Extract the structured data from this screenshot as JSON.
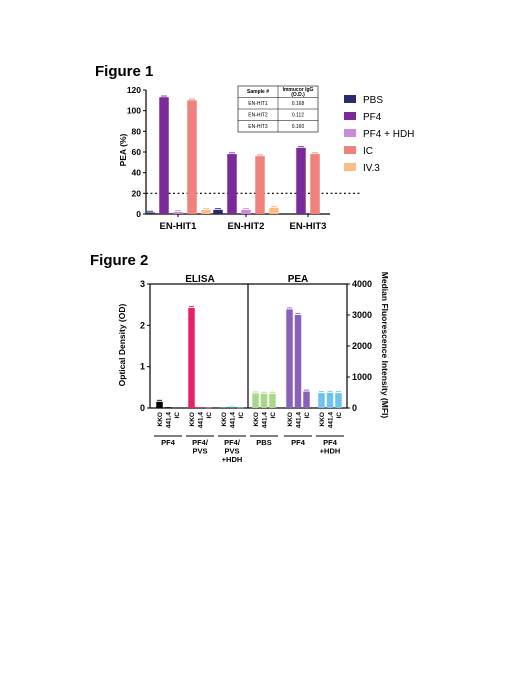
{
  "chart_data": [
    {
      "type": "bar",
      "title": "Figure 1",
      "ylabel": "PEA (%)",
      "ylim": [
        0,
        120
      ],
      "yticks": [
        "0",
        "20",
        "40",
        "60",
        "80",
        "100",
        "120"
      ],
      "categories": [
        "EN-HIT1",
        "EN-HIT2",
        "EN-HIT3"
      ],
      "threshold": 20,
      "series": [
        {
          "name": "PBS",
          "color": "#2b2a6d",
          "values": [
            1.5,
            4,
            null
          ]
        },
        {
          "name": "PF4",
          "color": "#7b2a9a",
          "values": [
            113,
            58,
            64
          ]
        },
        {
          "name": "PF4 + HDH",
          "color": "#c98ad8",
          "values": [
            2,
            4,
            null
          ]
        },
        {
          "name": "IC",
          "color": "#f0827e",
          "values": [
            110,
            56,
            58
          ]
        },
        {
          "name": "IV.3",
          "color": "#f8be86",
          "values": [
            4,
            6,
            null
          ]
        }
      ],
      "table": {
        "headers": [
          "Sample #",
          "Immucor IgG (O.D.)"
        ],
        "rows": [
          [
            "EN-HIT1",
            "0.168"
          ],
          [
            "EN-HIT2",
            "0.112"
          ],
          [
            "EN-HIT3",
            "0.160"
          ]
        ]
      }
    },
    {
      "type": "bar",
      "title": "Figure 2",
      "left_panel": "ELISA",
      "right_panel": "PEA",
      "ylabel": "Optical Density (OD)",
      "ylabel_right": "Median Fluorescence Intensity (MFI)",
      "ylim": [
        0,
        3
      ],
      "yticks": [
        "0",
        "1",
        "2",
        "3"
      ],
      "ylim_right": [
        0,
        4000
      ],
      "yticks_right": [
        "0",
        "1000",
        "2000",
        "3000",
        "4000"
      ],
      "bar_labels": [
        "KKO",
        "441.4",
        "IC"
      ],
      "groups": [
        {
          "label": [
            "PF4"
          ],
          "axis": "left",
          "colors": [
            "#000000",
            "#000000",
            "#000000"
          ],
          "values": [
            0.15,
            0.02,
            0.01
          ]
        },
        {
          "label": [
            "PF4/",
            "PVS"
          ],
          "axis": "left",
          "colors": [
            "#e8206a",
            "#e8206a",
            "#e8206a"
          ],
          "values": [
            2.42,
            0.02,
            0.01
          ]
        },
        {
          "label": [
            "PF4/",
            "PVS",
            "+HDH"
          ],
          "axis": "left",
          "colors": [
            "#17a9a6",
            "#17a9a6",
            "#17a9a6"
          ],
          "values": [
            0.02,
            0.03,
            0.01
          ]
        },
        {
          "label": [
            "PBS"
          ],
          "axis": "right",
          "colors": [
            "#a8d88a",
            "#a8d88a",
            "#a8d88a"
          ],
          "values": [
            470,
            460,
            460
          ]
        },
        {
          "label": [
            "PF4"
          ],
          "axis": "right",
          "colors": [
            "#8a60b8",
            "#8a60b8",
            "#8a60b8"
          ],
          "values": [
            3180,
            3000,
            530
          ]
        },
        {
          "label": [
            "PF4",
            "+HDH"
          ],
          "axis": "right",
          "colors": [
            "#6fc4ec",
            "#6fc4ec",
            "#6fc4ec"
          ],
          "values": [
            480,
            490,
            480
          ]
        }
      ]
    }
  ]
}
